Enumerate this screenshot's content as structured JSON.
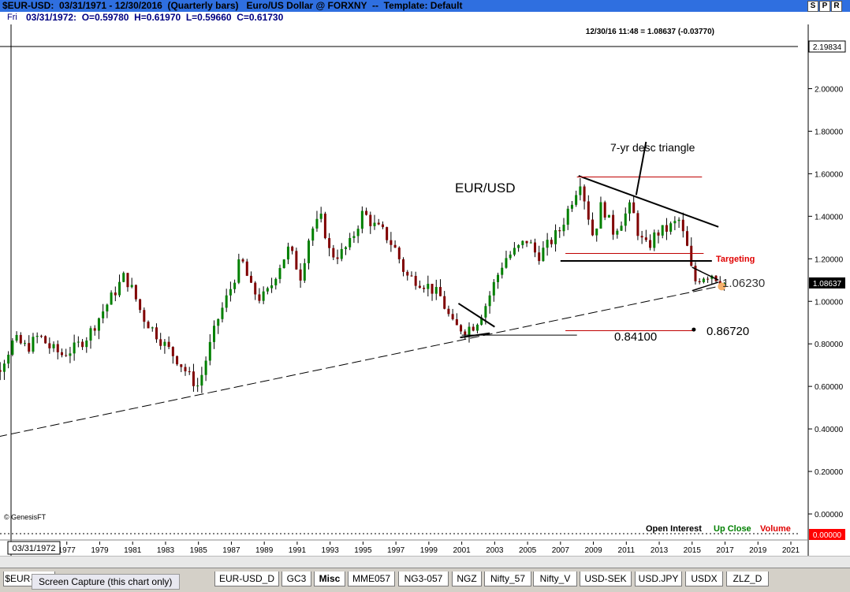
{
  "window": {
    "title": "$EUR-USD:  03/31/1971 - 12/30/2016  (Quarterly bars)   Euro/US Dollar @ FORXNY  --  Template: Default",
    "buttons": [
      "S",
      "P",
      "R"
    ]
  },
  "info_bar": {
    "day": "Fri",
    "ohlc": "03/31/1972:  O=0.59780  H=0.61970  L=0.59660  C=0.61730"
  },
  "chart_header": {
    "last_quote": "12/30/16 11:48 = 1.08637 (-0.03770)"
  },
  "footer_labels": {
    "open_interest": "Open Interest",
    "up_close": "Up Close",
    "volume": "Volume",
    "copyright": "© GenesisFT",
    "cursor_date": "03/31/1972"
  },
  "price_tags": {
    "top": "2.19834",
    "last": "1.08637",
    "bottom": "0.00000"
  },
  "colors": {
    "up_bar": "#008000",
    "down_bar": "#800000",
    "target_line": "#c00000",
    "title_bar": "#2f6fe0",
    "last_price_tag": "#000000",
    "zero_tag": "#ff0000"
  },
  "tabs": [
    "$EUR-USD",
    "EUR-USD_D",
    "GC3",
    "Misc",
    "MME057",
    "NG3-057",
    "NGZ",
    "Nifty_57",
    "Nifty_V",
    "USD-SEK",
    "USD.JPY",
    "USDX",
    "ZLZ_D"
  ],
  "active_tab": "Misc",
  "tooltip": "Screen Capture (this chart only)",
  "chart_data": {
    "type": "candlestick",
    "title": "EUR/USD",
    "x_axis_ticks": [
      "75",
      "1977",
      "1979",
      "1981",
      "1983",
      "1985",
      "1987",
      "1989",
      "1991",
      "1993",
      "1995",
      "1997",
      "1999",
      "2001",
      "2003",
      "2005",
      "2007",
      "2009",
      "2011",
      "2013",
      "2015",
      "2017",
      "2019",
      "2021"
    ],
    "y_axis_ticks": [
      "2.00000",
      "1.80000",
      "1.60000",
      "1.40000",
      "1.20000",
      "1.00000",
      "0.80000",
      "0.60000",
      "0.40000",
      "0.20000",
      "0.00000"
    ],
    "ylim": [
      0,
      2.19834
    ],
    "xlim": [
      1971,
      2021.5
    ],
    "price_path": [
      [
        1971.2,
        0.59
      ],
      [
        1972.0,
        0.61
      ],
      [
        1973.0,
        0.7
      ],
      [
        1973.8,
        0.82
      ],
      [
        1974.6,
        0.78
      ],
      [
        1975.3,
        0.84
      ],
      [
        1976.0,
        0.78
      ],
      [
        1976.7,
        0.75
      ],
      [
        1977.5,
        0.78
      ],
      [
        1978.3,
        0.84
      ],
      [
        1979.0,
        0.93
      ],
      [
        1979.8,
        1.03
      ],
      [
        1980.5,
        1.12
      ],
      [
        1981.0,
        1.05
      ],
      [
        1981.6,
        0.93
      ],
      [
        1982.3,
        0.86
      ],
      [
        1983.0,
        0.79
      ],
      [
        1983.8,
        0.72
      ],
      [
        1984.5,
        0.64
      ],
      [
        1985.0,
        0.6
      ],
      [
        1985.5,
        0.74
      ],
      [
        1986.2,
        0.92
      ],
      [
        1986.9,
        1.05
      ],
      [
        1987.6,
        1.2
      ],
      [
        1988.2,
        1.06
      ],
      [
        1988.8,
        1.01
      ],
      [
        1989.3,
        1.05
      ],
      [
        1989.8,
        1.15
      ],
      [
        1990.5,
        1.25
      ],
      [
        1991.2,
        1.12
      ],
      [
        1991.8,
        1.33
      ],
      [
        1992.5,
        1.39
      ],
      [
        1993.0,
        1.22
      ],
      [
        1993.6,
        1.22
      ],
      [
        1994.2,
        1.27
      ],
      [
        1995.0,
        1.42
      ],
      [
        1995.6,
        1.36
      ],
      [
        1996.3,
        1.32
      ],
      [
        1997.0,
        1.24
      ],
      [
        1997.6,
        1.12
      ],
      [
        1998.3,
        1.1
      ],
      [
        1999.0,
        1.07
      ],
      [
        1999.7,
        1.02
      ],
      [
        2000.5,
        0.88
      ],
      [
        2001.2,
        0.87
      ],
      [
        2001.8,
        0.89
      ],
      [
        2002.5,
        0.99
      ],
      [
        2003.0,
        1.09
      ],
      [
        2003.6,
        1.2
      ],
      [
        2004.3,
        1.24
      ],
      [
        2005.0,
        1.29
      ],
      [
        2005.6,
        1.21
      ],
      [
        2006.3,
        1.27
      ],
      [
        2007.0,
        1.34
      ],
      [
        2007.6,
        1.46
      ],
      [
        2008.2,
        1.57
      ],
      [
        2008.7,
        1.4
      ],
      [
        2009.0,
        1.3
      ],
      [
        2009.5,
        1.46
      ],
      [
        2010.2,
        1.33
      ],
      [
        2010.7,
        1.38
      ],
      [
        2011.3,
        1.45
      ],
      [
        2011.8,
        1.3
      ],
      [
        2012.3,
        1.25
      ],
      [
        2012.8,
        1.32
      ],
      [
        2013.5,
        1.34
      ],
      [
        2014.2,
        1.38
      ],
      [
        2014.7,
        1.25
      ],
      [
        2015.1,
        1.09
      ],
      [
        2015.6,
        1.12
      ],
      [
        2016.2,
        1.13
      ],
      [
        2016.9,
        1.086
      ]
    ],
    "annotations": {
      "chart_title": "EUR/USD",
      "triangle_label": "7-yr desc triangle",
      "targeting": "Targeting",
      "level_low": "0.84100",
      "level_target": "0.86720",
      "overlap_label": "1.06230"
    },
    "levels": {
      "triangle_top_line": [
        [
          2008.1,
          1.59
        ],
        [
          2016.6,
          1.35
        ]
      ],
      "triangle_base": [
        [
          2007.0,
          1.19
        ],
        [
          2016.2,
          1.19
        ]
      ],
      "red_top": 1.585,
      "red_mid": 1.225,
      "red_low": 0.862,
      "support_line": [
        [
          1972.0,
          0.35
        ],
        [
          2016.6,
          1.07
        ]
      ],
      "low_line": [
        [
          2001.0,
          0.841
        ],
        [
          2008.0,
          0.841
        ]
      ],
      "target_point": [
        2015.1,
        0.8672
      ]
    },
    "last_price": 1.08637
  }
}
